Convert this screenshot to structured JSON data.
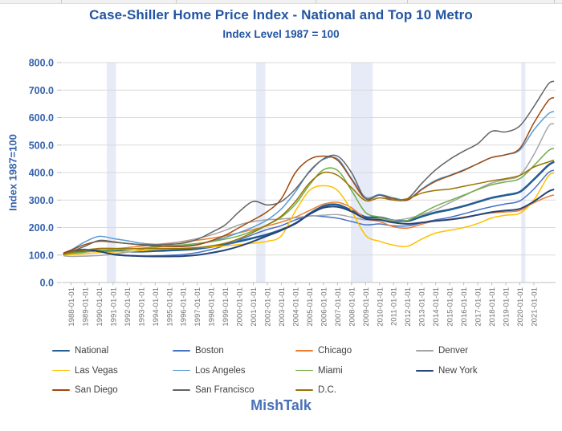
{
  "page": {
    "title": "Case-Shiller Home Price Index - National and Top 10 Metro",
    "subtitle": "Index Level 1987 = 100",
    "y_axis_title": "Index 1987=100",
    "watermark": "MishTalk"
  },
  "chart_data": {
    "type": "line",
    "title": "Case-Shiller Home Price Index - National and Top 10 Metro",
    "subtitle": "Index Level 1987 = 100",
    "ylabel": "Index 1987=100",
    "xlabel": "",
    "ylim": [
      0,
      800
    ],
    "y_ticks": [
      0,
      100,
      200,
      300,
      400,
      500,
      600,
      700,
      800
    ],
    "grid": "horizontal",
    "legend_position": "bottom",
    "x_tick_labels": [
      "1988-01-01",
      "1989-01-01",
      "1990-01-01",
      "1991-01-01",
      "1992-01-01",
      "1993-01-01",
      "1994-01-01",
      "1995-01-01",
      "1996-01-01",
      "1997-01-01",
      "1998-01-01",
      "1999-01-01",
      "2000-01-01",
      "2001-01-01",
      "2002-01-01",
      "2003-01-01",
      "2004-01-01",
      "2005-01-01",
      "2006-01-01",
      "2007-01-01",
      "2008-01-01",
      "2009-01-01",
      "2010-01-01",
      "2011-01-01",
      "2012-01-01",
      "2013-01-01",
      "2014-01-01",
      "2015-01-01",
      "2016-01-01",
      "2017-01-01",
      "2018-01-01",
      "2019-01-01",
      "2020-01-01",
      "2021-01-01"
    ],
    "x": [
      1987.5,
      1988,
      1989,
      1990,
      1991,
      1992,
      1993,
      1994,
      1995,
      1996,
      1997,
      1998,
      1999,
      2000,
      2001,
      2002,
      2003,
      2004,
      2005,
      2006,
      2007,
      2008,
      2009,
      2010,
      2011,
      2012,
      2013,
      2014,
      2015,
      2016,
      2017,
      2018,
      2019,
      2020,
      2021,
      2022,
      2022.4
    ],
    "recession_bands": [
      [
        1990.55,
        1991.2
      ],
      [
        2001.2,
        2001.85
      ],
      [
        2007.95,
        2009.5
      ],
      [
        2020.1,
        2020.4
      ]
    ],
    "band_color": "#e6ebf7",
    "grid_color": "#d9d9d9",
    "axis_color": "#bfbfbf",
    "x_tick_color": "#737373",
    "y_tick_color": "#3462ac",
    "series": [
      {
        "name": "National",
        "color": "#255e91",
        "width": 2.6,
        "values": [
          102,
          106,
          113,
          117,
          115,
          113,
          113,
          115,
          117,
          119,
          123,
          130,
          139,
          150,
          162,
          175,
          192,
          215,
          250,
          278,
          283,
          262,
          238,
          237,
          226,
          224,
          240,
          255,
          265,
          278,
          293,
          308,
          318,
          330,
          375,
          425,
          438
        ]
      },
      {
        "name": "Boston",
        "color": "#4472c4",
        "width": 1.5,
        "values": [
          108,
          116,
          121,
          113,
          101,
          97,
          96,
          97,
          99,
          102,
          109,
          120,
          135,
          155,
          175,
          193,
          207,
          228,
          242,
          240,
          234,
          222,
          210,
          213,
          206,
          206,
          217,
          228,
          237,
          250,
          264,
          276,
          286,
          297,
          340,
          398,
          408
        ]
      },
      {
        "name": "Chicago",
        "color": "#ed7d31",
        "width": 1.5,
        "values": [
          101,
          104,
          110,
          117,
          122,
          127,
          132,
          138,
          143,
          148,
          154,
          161,
          170,
          181,
          193,
          206,
          220,
          238,
          262,
          285,
          292,
          272,
          232,
          222,
          203,
          198,
          212,
          225,
          230,
          238,
          246,
          253,
          257,
          262,
          290,
          312,
          318
        ]
      },
      {
        "name": "Denver",
        "color": "#a5a5a5",
        "width": 1.5,
        "values": [
          97,
          95,
          96,
          98,
          103,
          110,
          120,
          132,
          142,
          150,
          160,
          173,
          190,
          210,
          222,
          228,
          231,
          236,
          242,
          245,
          247,
          238,
          228,
          232,
          227,
          233,
          247,
          265,
          290,
          315,
          340,
          362,
          375,
          390,
          465,
          565,
          578
        ]
      },
      {
        "name": "Las Vegas",
        "color": "#ffc000",
        "width": 1.5,
        "values": [
          100,
          102,
          105,
          109,
          111,
          113,
          116,
          120,
          123,
          125,
          127,
          130,
          133,
          138,
          143,
          150,
          170,
          260,
          335,
          352,
          335,
          262,
          172,
          150,
          136,
          132,
          158,
          180,
          190,
          200,
          215,
          235,
          245,
          252,
          300,
          385,
          398
        ]
      },
      {
        "name": "Los Angeles",
        "color": "#5b9bd5",
        "width": 1.5,
        "values": [
          105,
          118,
          148,
          168,
          160,
          152,
          143,
          139,
          136,
          134,
          138,
          150,
          164,
          182,
          202,
          228,
          268,
          330,
          405,
          448,
          450,
          378,
          310,
          320,
          308,
          302,
          340,
          372,
          390,
          410,
          432,
          455,
          465,
          482,
          555,
          612,
          622
        ]
      },
      {
        "name": "Miami",
        "color": "#70ad47",
        "width": 1.5,
        "values": [
          102,
          106,
          111,
          116,
          118,
          121,
          125,
          129,
          133,
          137,
          142,
          149,
          158,
          170,
          188,
          210,
          238,
          285,
          355,
          410,
          408,
          335,
          255,
          238,
          222,
          226,
          252,
          278,
          298,
          318,
          338,
          356,
          366,
          378,
          425,
          478,
          488
        ]
      },
      {
        "name": "New York",
        "color": "#264478",
        "width": 2.0,
        "values": [
          106,
          113,
          119,
          113,
          103,
          98,
          96,
          95,
          95,
          96,
          100,
          108,
          118,
          132,
          150,
          170,
          190,
          215,
          248,
          272,
          275,
          258,
          232,
          228,
          218,
          213,
          218,
          224,
          229,
          236,
          246,
          256,
          262,
          268,
          295,
          330,
          338
        ]
      },
      {
        "name": "San Diego",
        "color": "#9e480e",
        "width": 1.5,
        "values": [
          108,
          118,
          138,
          150,
          147,
          142,
          137,
          133,
          131,
          131,
          137,
          152,
          172,
          200,
          228,
          258,
          305,
          400,
          448,
          460,
          445,
          375,
          305,
          318,
          305,
          300,
          338,
          368,
          388,
          408,
          432,
          455,
          465,
          488,
          580,
          660,
          672
        ]
      },
      {
        "name": "San Francisco",
        "color": "#636363",
        "width": 1.5,
        "values": [
          104,
          112,
          132,
          153,
          148,
          142,
          138,
          137,
          139,
          143,
          157,
          182,
          210,
          258,
          295,
          282,
          295,
          340,
          402,
          450,
          460,
          400,
          305,
          318,
          300,
          305,
          360,
          410,
          448,
          478,
          505,
          550,
          548,
          570,
          640,
          720,
          732
        ]
      },
      {
        "name": "D.C.",
        "color": "#997300",
        "width": 1.5,
        "values": [
          103,
          110,
          118,
          124,
          124,
          123,
          123,
          124,
          124,
          124,
          127,
          133,
          143,
          160,
          183,
          210,
          242,
          295,
          362,
          400,
          390,
          345,
          298,
          308,
          300,
          305,
          325,
          335,
          340,
          350,
          360,
          370,
          378,
          390,
          420,
          438,
          445
        ]
      }
    ]
  }
}
